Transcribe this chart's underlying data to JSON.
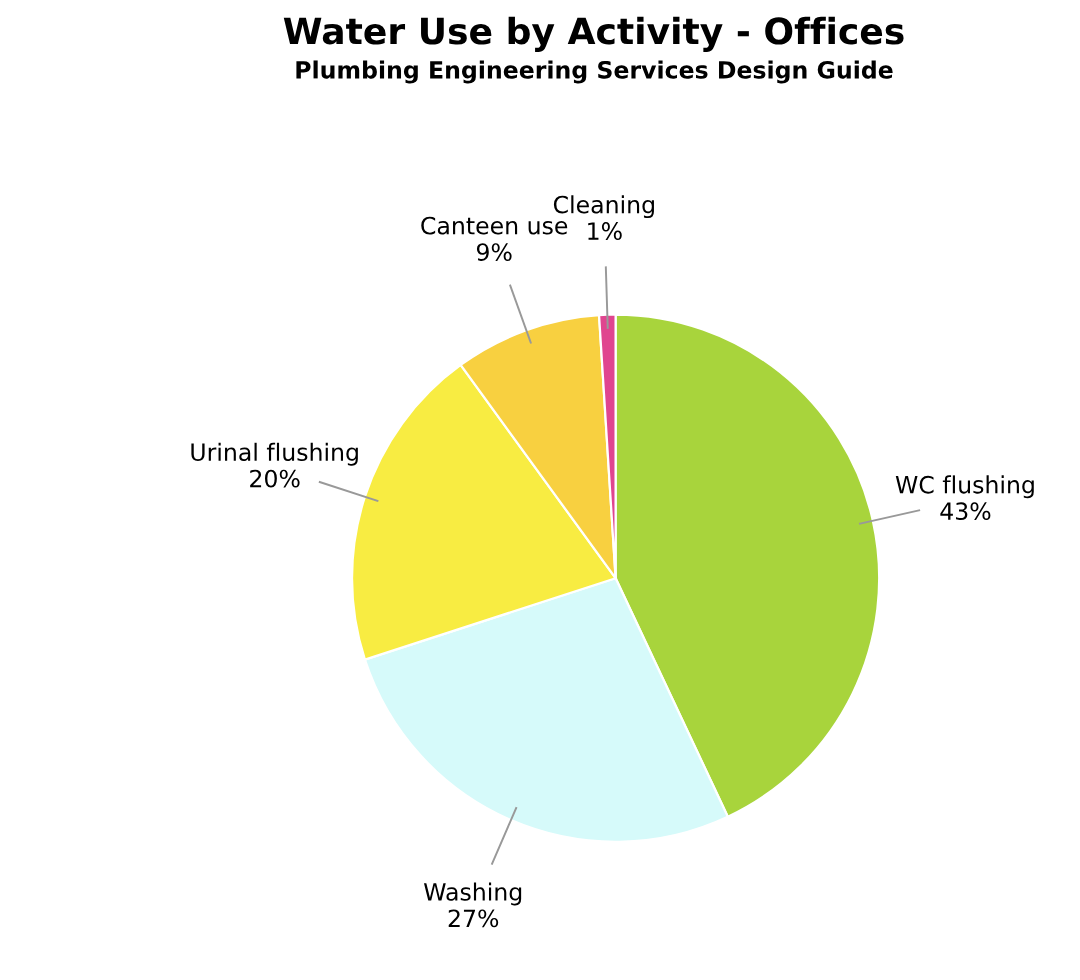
{
  "chart_data": {
    "type": "pie",
    "title": "Water Use by Activity - Offices",
    "subtitle": "Plumbing Engineering Services Design Guide",
    "categories": [
      "WC flushing",
      "Washing",
      "Urinal flushing",
      "Canteen use",
      "Cleaning"
    ],
    "values": [
      43,
      27,
      20,
      9,
      1
    ],
    "colors": [
      "#a8d43c",
      "#d6fafa",
      "#f8ec42",
      "#f8d040",
      "#e0458f"
    ],
    "value_labels": [
      "43%",
      "27%",
      "20%",
      "9%",
      "1%"
    ]
  }
}
